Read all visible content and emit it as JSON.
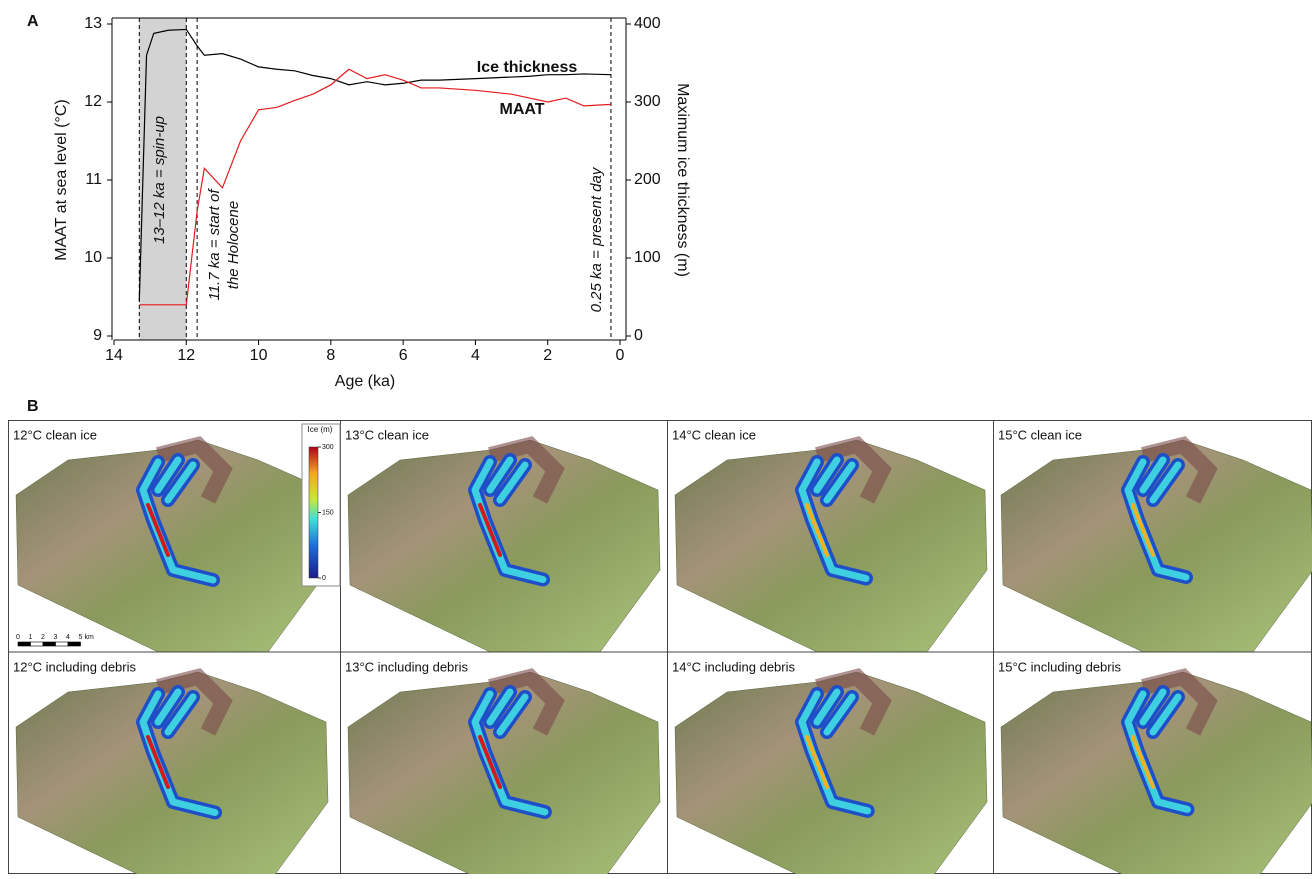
{
  "chart_data": {
    "type": "line",
    "panel_label": "A",
    "xlabel": "Age (ka)",
    "ylabel": "MAAT at sea level (°C)",
    "y2label": "Maximum ice thickness (m)",
    "x": [
      13.3,
      13.1,
      12.9,
      12.5,
      12,
      11.7,
      11.5,
      11,
      10.5,
      10,
      9.5,
      9,
      8.5,
      8,
      7.5,
      7,
      6.5,
      6,
      5.5,
      5,
      4,
      3,
      2.5,
      2,
      1.5,
      1,
      0.25
    ],
    "series": [
      {
        "name": "Ice thickness",
        "color": "#000000",
        "axis": "y2",
        "values": [
          45,
          360,
          388,
          392,
          393,
          372,
          360,
          362,
          355,
          345,
          342,
          340,
          334,
          330,
          322,
          326,
          322,
          324,
          328,
          328,
          330,
          332,
          333,
          335,
          335,
          336,
          335
        ]
      },
      {
        "name": "MAAT",
        "color": "#e41a1c",
        "axis": "y",
        "values": [
          9.4,
          9.4,
          9.4,
          9.4,
          9.4,
          10.6,
          11.15,
          10.9,
          11.5,
          11.9,
          11.93,
          12.02,
          12.1,
          12.22,
          12.42,
          12.3,
          12.35,
          12.28,
          12.18,
          12.18,
          12.15,
          12.1,
          12.05,
          12.0,
          12.05,
          11.95,
          11.97
        ]
      }
    ],
    "xlim": [
      14,
      0
    ],
    "xticks": [
      14,
      12,
      10,
      8,
      6,
      4,
      2,
      0
    ],
    "ylim": [
      9,
      13
    ],
    "yticks": [
      9,
      10,
      11,
      12,
      13
    ],
    "y2lim": [
      0,
      400
    ],
    "y2ticks": [
      0,
      100,
      200,
      300,
      400
    ],
    "shaded_span": [
      13.3,
      12
    ],
    "dashed_lines": [
      13.3,
      12,
      11.7,
      0.25
    ],
    "annotations": [
      "13–12 ka = spin-up",
      "11.7 ka = start of",
      "the Holocene",
      "0.25 ka = present day"
    ]
  },
  "panel_b": {
    "label": "B",
    "cells": [
      "12°C clean ice",
      "13°C clean ice",
      "14°C clean ice",
      "15°C clean ice",
      "12°C including debris",
      "13°C including debris",
      "14°C including debris",
      "15°C including debris"
    ],
    "colorbar": {
      "title": "Ice (m)",
      "ticks": [
        0,
        150,
        300
      ]
    },
    "scale_bar": {
      "ticks": [
        0,
        1,
        2,
        3,
        4,
        5
      ],
      "unit": "km"
    }
  }
}
